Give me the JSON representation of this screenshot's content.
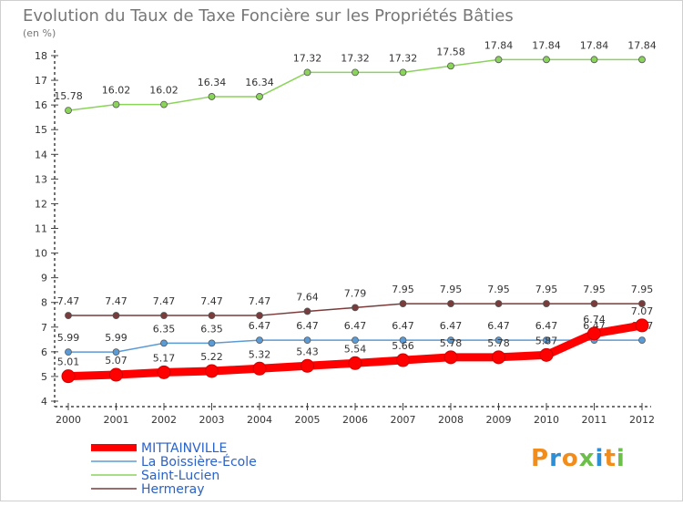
{
  "chart_data": {
    "type": "line",
    "title": "Evolution du Taux de Taxe Foncière sur les Propriétés Bâties",
    "ylabel": "(en %)",
    "xlabel": "",
    "ylim": [
      4,
      18
    ],
    "yticks": [
      4,
      5,
      6,
      7,
      8,
      9,
      10,
      11,
      12,
      13,
      14,
      15,
      16,
      17,
      18
    ],
    "x": [
      "2000",
      "2001",
      "2002",
      "2003",
      "2004",
      "2005",
      "2006",
      "2007",
      "2008",
      "2009",
      "2010",
      "2011",
      "2012"
    ],
    "grid": false,
    "legend_position": "bottom-left",
    "series": [
      {
        "name": "MITTAINVILLE",
        "color": "#ff0000",
        "values": [
          5.01,
          5.07,
          5.17,
          5.22,
          5.32,
          5.43,
          5.54,
          5.66,
          5.78,
          5.78,
          5.87,
          6.74,
          7.07
        ],
        "labels": [
          "5.01",
          "5.07",
          "5.17",
          "5.22",
          "5.32",
          "5.43",
          "5.54",
          "5.66",
          "5.78",
          "5.78",
          "5.87",
          "6.74",
          "7.07"
        ]
      },
      {
        "name": "La Boissière-École",
        "color": "#5b9bd5",
        "values": [
          5.99,
          5.99,
          6.35,
          6.35,
          6.47,
          6.47,
          6.47,
          6.47,
          6.47,
          6.47,
          6.47,
          6.47,
          6.47
        ],
        "labels": [
          "5.99",
          "5.99",
          "6.35",
          "6.35",
          "6.47",
          "6.47",
          "6.47",
          "6.47",
          "6.47",
          "6.47",
          "6.47",
          "6.47",
          "6.47"
        ]
      },
      {
        "name": "Saint-Lucien",
        "color": "#8ad45a",
        "values": [
          15.78,
          16.02,
          16.02,
          16.34,
          16.34,
          17.32,
          17.32,
          17.32,
          17.58,
          17.84,
          17.84,
          17.84,
          17.84
        ],
        "labels": [
          "15.78",
          "16.02",
          "16.02",
          "16.34",
          "16.34",
          "17.32",
          "17.32",
          "17.32",
          "17.58",
          "17.84",
          "17.84",
          "17.84",
          "17.84"
        ]
      },
      {
        "name": "Hermeray",
        "color": "#7a3b3b",
        "values": [
          7.47,
          7.47,
          7.47,
          7.47,
          7.47,
          7.64,
          7.79,
          7.95,
          7.95,
          7.95,
          7.95,
          7.95,
          7.95
        ],
        "labels": [
          "7.47",
          "7.47",
          "7.47",
          "7.47",
          "7.47",
          "7.64",
          "7.79",
          "7.95",
          "7.95",
          "7.95",
          "7.95",
          "7.95",
          "7.95"
        ]
      }
    ]
  },
  "brand": {
    "letters": [
      "P",
      "r",
      "o",
      "x",
      "i",
      "t",
      "i"
    ],
    "colors": [
      "#f28c1a",
      "#2a8fd6",
      "#f28c1a",
      "#6cc04a",
      "#2a8fd6",
      "#f28c1a",
      "#6cc04a"
    ]
  }
}
